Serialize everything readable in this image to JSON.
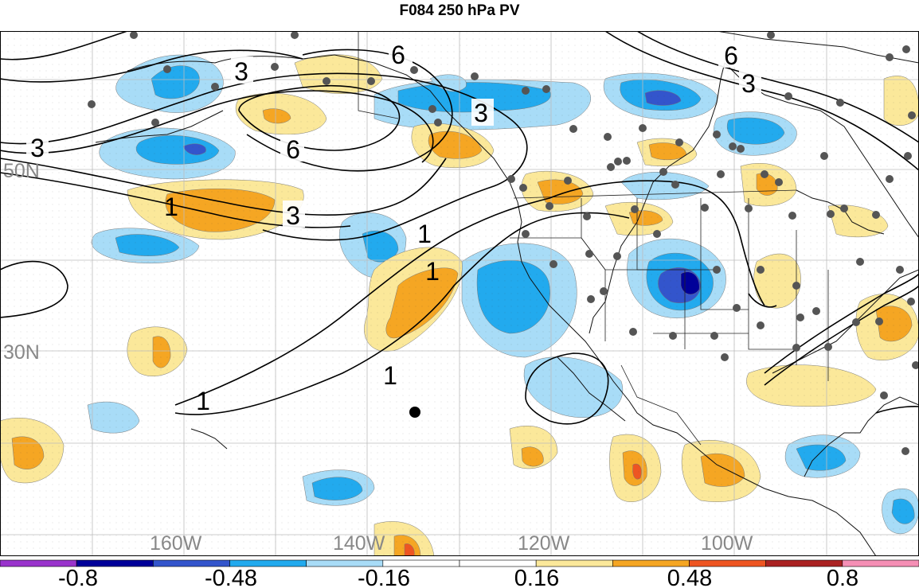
{
  "title": "F084 250 hPa PV",
  "lat_labels": [
    "50N",
    "30N"
  ],
  "lon_labels": [
    "160W",
    "140W",
    "120W",
    "100W"
  ],
  "contour_labels": [
    "6",
    "6",
    "6",
    "3",
    "3",
    "3",
    "3",
    "3",
    "1",
    "1",
    "1",
    "1"
  ],
  "colorbar": {
    "colors": [
      "#9933cc",
      "#000099",
      "#3355cc",
      "#22aaee",
      "#a8dcf7",
      "#ffffff",
      "#ffffff",
      "#fbe89a",
      "#f5a623",
      "#ee5522",
      "#aa2222",
      "#f58fb5"
    ],
    "tick_labels": [
      "-0.8",
      "-0.48",
      "-0.16",
      "0.16",
      "0.48",
      "0.8"
    ]
  },
  "colors": {
    "neg_light": "#a8dcf7",
    "neg_mid": "#22aaee",
    "neg_dark": "#3355cc",
    "neg_darkest": "#000099",
    "pos_light": "#fbe89a",
    "pos_mid": "#f5a623",
    "pos_dark": "#ee5522"
  }
}
